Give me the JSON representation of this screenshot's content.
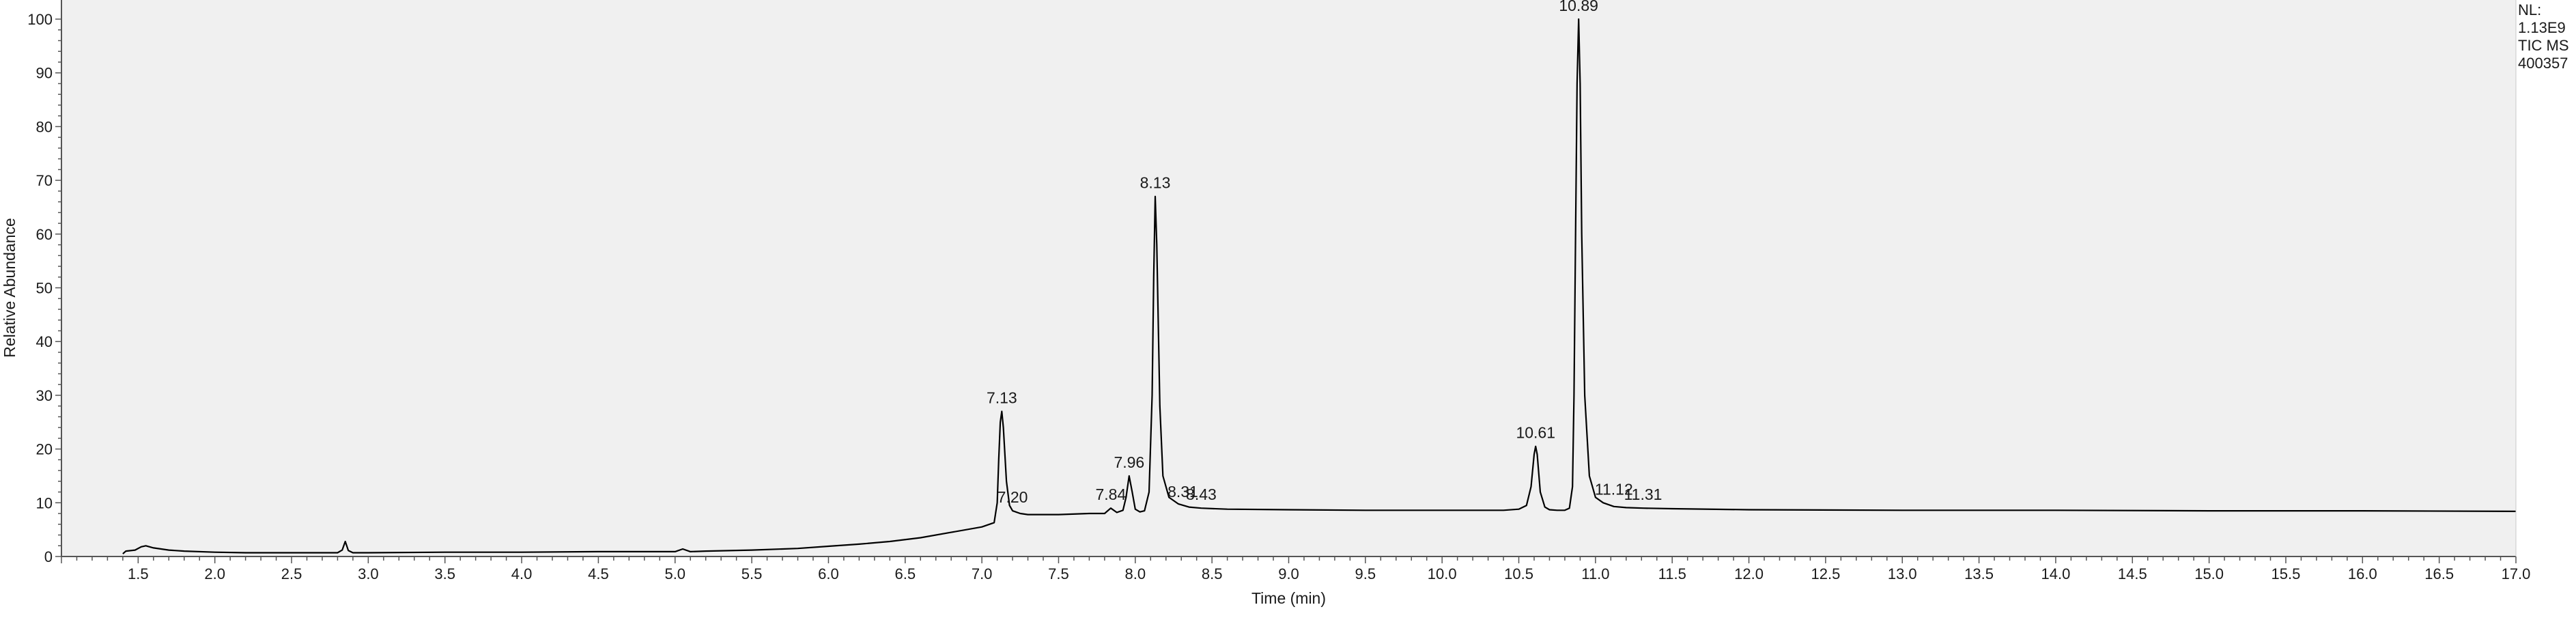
{
  "chart_data": {
    "type": "line",
    "title": "",
    "xlabel": "Time (min)",
    "ylabel": "Relative Abundance",
    "xlim": [
      1.0,
      17.0
    ],
    "ylim": [
      0,
      100
    ],
    "x_ticks": [
      1.5,
      2.0,
      2.5,
      3.0,
      3.5,
      4.0,
      4.5,
      5.0,
      5.5,
      6.0,
      6.5,
      7.0,
      7.5,
      8.0,
      8.5,
      9.0,
      9.5,
      10.0,
      10.5,
      11.0,
      11.5,
      12.0,
      12.5,
      13.0,
      13.5,
      14.0,
      14.5,
      15.0,
      15.5,
      16.0,
      16.5,
      17.0
    ],
    "x_tick_labels": [
      "1.5",
      "2.0",
      "2.5",
      "3.0",
      "3.5",
      "4.0",
      "4.5",
      "5.0",
      "5.5",
      "6.0",
      "6.5",
      "7.0",
      "7.5",
      "8.0",
      "8.5",
      "9.0",
      "9.5",
      "10.0",
      "10.5",
      "11.0",
      "11.5",
      "12.0",
      "12.5",
      "13.0",
      "13.5",
      "14.0",
      "14.5",
      "15.0",
      "15.5",
      "16.0",
      "16.5",
      "17.0"
    ],
    "y_ticks": [
      0,
      10,
      20,
      30,
      40,
      50,
      60,
      70,
      80,
      90,
      100
    ],
    "y_tick_labels": [
      "0",
      "10",
      "20",
      "30",
      "40",
      "50",
      "60",
      "70",
      "80",
      "90",
      "100"
    ],
    "grid": false,
    "background": "#f0f0f0",
    "line_color": "#000000",
    "series": [
      {
        "name": "TIC MS",
        "x": [
          1.4,
          1.42,
          1.48,
          1.52,
          1.55,
          1.6,
          1.7,
          1.8,
          2.0,
          2.2,
          2.5,
          2.8,
          2.83,
          2.85,
          2.87,
          2.9,
          3.0,
          3.5,
          4.0,
          4.5,
          5.0,
          5.05,
          5.1,
          5.2,
          5.5,
          5.8,
          6.0,
          6.2,
          6.4,
          6.6,
          6.8,
          7.0,
          7.08,
          7.1,
          7.11,
          7.12,
          7.13,
          7.14,
          7.16,
          7.18,
          7.2,
          7.25,
          7.3,
          7.5,
          7.7,
          7.8,
          7.84,
          7.88,
          7.92,
          7.94,
          7.96,
          7.98,
          8.0,
          8.03,
          8.06,
          8.09,
          8.11,
          8.12,
          8.13,
          8.14,
          8.16,
          8.18,
          8.22,
          8.28,
          8.35,
          8.43,
          8.6,
          9.0,
          9.5,
          10.0,
          10.4,
          10.5,
          10.55,
          10.58,
          10.6,
          10.61,
          10.62,
          10.64,
          10.67,
          10.7,
          10.75,
          10.8,
          10.83,
          10.85,
          10.86,
          10.87,
          10.88,
          10.89,
          10.9,
          10.91,
          10.93,
          10.96,
          11.0,
          11.05,
          11.12,
          11.2,
          11.31,
          11.5,
          12.0,
          13.0,
          14.0,
          15.0,
          16.0,
          17.0
        ],
        "y": [
          0.5,
          1.0,
          1.2,
          1.8,
          2.0,
          1.6,
          1.2,
          1.0,
          0.8,
          0.7,
          0.7,
          0.7,
          1.2,
          2.8,
          1.1,
          0.7,
          0.7,
          0.8,
          0.8,
          0.9,
          0.9,
          1.4,
          0.9,
          1.0,
          1.2,
          1.5,
          1.9,
          2.3,
          2.8,
          3.5,
          4.5,
          5.5,
          6.3,
          10.0,
          18.0,
          25.0,
          27.0,
          24.0,
          14.0,
          9.5,
          8.5,
          8.0,
          7.8,
          7.8,
          8.0,
          8.0,
          9.0,
          8.2,
          8.6,
          11.0,
          15.0,
          12.0,
          8.8,
          8.3,
          8.5,
          12.0,
          30.0,
          52.0,
          67.0,
          58.0,
          28.0,
          15.0,
          11.0,
          9.8,
          9.2,
          9.0,
          8.8,
          8.7,
          8.6,
          8.6,
          8.6,
          8.8,
          9.5,
          13.0,
          19.0,
          20.5,
          19.0,
          12.0,
          9.2,
          8.7,
          8.6,
          8.6,
          9.0,
          13.0,
          30.0,
          60.0,
          88.0,
          100.0,
          88.0,
          60.0,
          30.0,
          15.0,
          11.0,
          10.0,
          9.3,
          9.1,
          9.0,
          8.9,
          8.7,
          8.6,
          8.6,
          8.5,
          8.5,
          8.4
        ]
      }
    ],
    "peak_labels": [
      {
        "x": 7.13,
        "y": 27.0,
        "text": "7.13"
      },
      {
        "x": 7.2,
        "y": 8.5,
        "text": "7.20"
      },
      {
        "x": 7.84,
        "y": 9.0,
        "text": "7.84"
      },
      {
        "x": 7.96,
        "y": 15.0,
        "text": "7.96"
      },
      {
        "x": 8.13,
        "y": 67.0,
        "text": "8.13"
      },
      {
        "x": 8.31,
        "y": 9.5,
        "text": "8.31"
      },
      {
        "x": 8.43,
        "y": 9.0,
        "text": "8.43"
      },
      {
        "x": 10.61,
        "y": 20.5,
        "text": "10.61"
      },
      {
        "x": 10.89,
        "y": 100.0,
        "text": "10.89"
      },
      {
        "x": 11.12,
        "y": 10.0,
        "text": "11.12"
      },
      {
        "x": 11.31,
        "y": 9.0,
        "text": "11.31"
      }
    ]
  },
  "info": {
    "nl_label": "NL:",
    "nl_value": "1.13E9",
    "scan_filter": "TIC  MS",
    "sample_id": "400357"
  }
}
